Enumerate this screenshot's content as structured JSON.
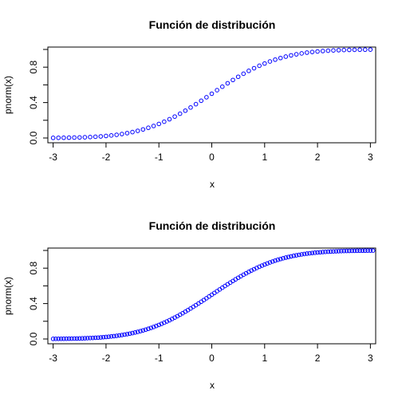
{
  "chart_data": [
    {
      "type": "scatter",
      "title": "Función de distribución",
      "xlabel": "x",
      "ylabel": "pnorm(x)",
      "xlim": [
        -3.1,
        3.1
      ],
      "ylim": [
        0.0,
        1.0
      ],
      "xticks": [
        "-3",
        "-2",
        "-1",
        "0",
        "1",
        "2",
        "3"
      ],
      "yticks": [
        "0.0",
        "0.4",
        "0.8"
      ],
      "grid": false,
      "point_color": "#0000ff",
      "series": [
        {
          "x": [
            -3.0,
            -2.9,
            -2.8,
            -2.7,
            -2.6,
            -2.5,
            -2.4,
            -2.3,
            -2.2,
            -2.1,
            -2.0,
            -1.9,
            -1.8,
            -1.7,
            -1.6,
            -1.5,
            -1.4,
            -1.3,
            -1.2,
            -1.1,
            -1.0,
            -0.9,
            -0.8,
            -0.7,
            -0.6,
            -0.5,
            -0.4,
            -0.3,
            -0.2,
            -0.1,
            0.0,
            0.1,
            0.2,
            0.3,
            0.4,
            0.5,
            0.6,
            0.7,
            0.8,
            0.9,
            1.0,
            1.1,
            1.2,
            1.3,
            1.4,
            1.5,
            1.6,
            1.7,
            1.8,
            1.9,
            2.0,
            2.1,
            2.2,
            2.3,
            2.4,
            2.5,
            2.6,
            2.7,
            2.8,
            2.9,
            3.0
          ],
          "y": [
            0.0013,
            0.0019,
            0.0026,
            0.0035,
            0.0047,
            0.0062,
            0.0082,
            0.0107,
            0.0139,
            0.0179,
            0.0228,
            0.0287,
            0.0359,
            0.0446,
            0.0548,
            0.0668,
            0.0808,
            0.0968,
            0.1151,
            0.1357,
            0.1587,
            0.1841,
            0.2119,
            0.242,
            0.2743,
            0.3085,
            0.3446,
            0.3821,
            0.4207,
            0.4602,
            0.5,
            0.5398,
            0.5793,
            0.6179,
            0.6554,
            0.6915,
            0.7257,
            0.758,
            0.7881,
            0.8159,
            0.8413,
            0.8643,
            0.8849,
            0.9032,
            0.9192,
            0.9332,
            0.9452,
            0.9554,
            0.9641,
            0.9713,
            0.9772,
            0.9821,
            0.9861,
            0.9893,
            0.9918,
            0.9938,
            0.9953,
            0.9965,
            0.9974,
            0.9981,
            0.9987
          ]
        }
      ]
    },
    {
      "type": "scatter",
      "title": "Función de distribución",
      "xlabel": "x",
      "ylabel": "pnorm(x)",
      "xlim": [
        -3.1,
        3.1
      ],
      "ylim": [
        0.0,
        1.0
      ],
      "xticks": [
        "-3",
        "-2",
        "-1",
        "0",
        "1",
        "2",
        "3"
      ],
      "yticks": [
        "0.0",
        "0.4",
        "0.8"
      ],
      "grid": false,
      "point_color": "#0000ff",
      "series": [
        {
          "x": [
            -3.0,
            -2.9,
            -2.8,
            -2.7,
            -2.6,
            -2.5,
            -2.4,
            -2.3,
            -2.2,
            -2.1,
            -2.0,
            -1.9,
            -1.8,
            -1.7,
            -1.6,
            -1.5,
            -1.4,
            -1.3,
            -1.2,
            -1.1,
            -1.0,
            -0.9,
            -0.8,
            -0.7,
            -0.6,
            -0.5,
            -0.4,
            -0.3,
            -0.2,
            -0.1,
            0.0,
            0.1,
            0.2,
            0.3,
            0.4,
            0.5,
            0.6,
            0.7,
            0.8,
            0.9,
            1.0,
            1.1,
            1.2,
            1.3,
            1.4,
            1.5,
            1.6,
            1.7,
            1.8,
            1.9,
            2.0,
            2.1,
            2.2,
            2.3,
            2.4,
            2.5,
            2.6,
            2.7,
            2.8,
            2.9,
            3.0,
            -2.95,
            -2.85,
            -2.75,
            -2.65,
            -2.55,
            -2.45,
            -2.35,
            -2.25,
            -2.15,
            -2.05,
            -1.95,
            -1.85,
            -1.75,
            -1.65,
            -1.55,
            -1.45,
            -1.35,
            -1.25,
            -1.15,
            -1.05,
            -0.95,
            -0.85,
            -0.75,
            -0.65,
            -0.55,
            -0.45,
            -0.35,
            -0.25,
            -0.15,
            -0.05,
            0.05,
            0.15,
            0.25,
            0.35,
            0.45,
            0.55,
            0.65,
            0.75,
            0.85,
            0.95,
            1.05,
            1.15,
            1.25,
            1.35,
            1.45,
            1.55,
            1.65,
            1.75,
            1.85,
            1.95,
            2.05,
            2.15,
            2.25,
            2.35,
            2.45,
            2.55,
            2.65,
            2.75,
            2.85,
            2.95,
            3.05
          ],
          "y": [
            0.0013,
            0.0019,
            0.0026,
            0.0035,
            0.0047,
            0.0062,
            0.0082,
            0.0107,
            0.0139,
            0.0179,
            0.0228,
            0.0287,
            0.0359,
            0.0446,
            0.0548,
            0.0668,
            0.0808,
            0.0968,
            0.1151,
            0.1357,
            0.1587,
            0.1841,
            0.2119,
            0.242,
            0.2743,
            0.3085,
            0.3446,
            0.3821,
            0.4207,
            0.4602,
            0.5,
            0.5398,
            0.5793,
            0.6179,
            0.6554,
            0.6915,
            0.7257,
            0.758,
            0.7881,
            0.8159,
            0.8413,
            0.8643,
            0.8849,
            0.9032,
            0.9192,
            0.9332,
            0.9452,
            0.9554,
            0.9641,
            0.9713,
            0.9772,
            0.9821,
            0.9861,
            0.9893,
            0.9918,
            0.9938,
            0.9953,
            0.9965,
            0.9974,
            0.9981,
            0.9987,
            0.0016,
            0.0022,
            0.003,
            0.004,
            0.0054,
            0.0071,
            0.0094,
            0.0122,
            0.0158,
            0.0202,
            0.0256,
            0.0322,
            0.0401,
            0.0495,
            0.0606,
            0.0735,
            0.0885,
            0.1056,
            0.1251,
            0.1469,
            0.1711,
            0.1977,
            0.2266,
            0.2578,
            0.2912,
            0.3264,
            0.3632,
            0.4013,
            0.4404,
            0.4801,
            0.5199,
            0.5596,
            0.5987,
            0.6368,
            0.6736,
            0.7088,
            0.7422,
            0.7734,
            0.8023,
            0.8289,
            0.8531,
            0.8749,
            0.8944,
            0.9115,
            0.9265,
            0.9394,
            0.9505,
            0.9599,
            0.9678,
            0.9744,
            0.9798,
            0.9842,
            0.9878,
            0.9906,
            0.9929,
            0.9946,
            0.996,
            0.997,
            0.9978,
            0.9984,
            0.9989
          ]
        }
      ]
    }
  ]
}
